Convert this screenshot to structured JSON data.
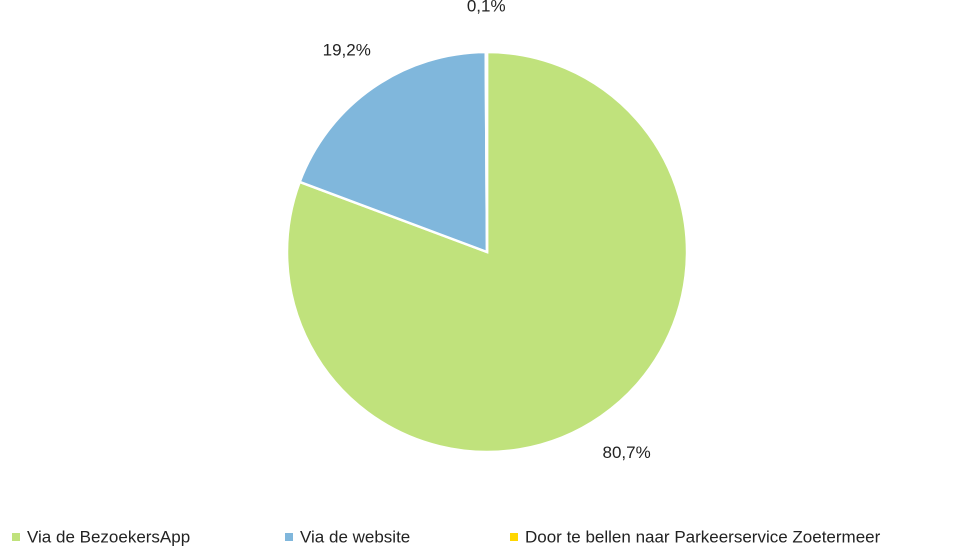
{
  "chart_data": {
    "type": "pie",
    "categories": [
      "Via de BezoekersApp",
      "Via de website",
      "Door te bellen naar Parkeerservice Zoetermeer"
    ],
    "values": [
      80.7,
      19.2,
      0.1
    ],
    "value_labels": [
      "80,7%",
      "19,2%",
      "0,1%"
    ],
    "colors": [
      "#c0e27c",
      "#80b7dc",
      "#ffd700"
    ],
    "legend": "bottom"
  }
}
